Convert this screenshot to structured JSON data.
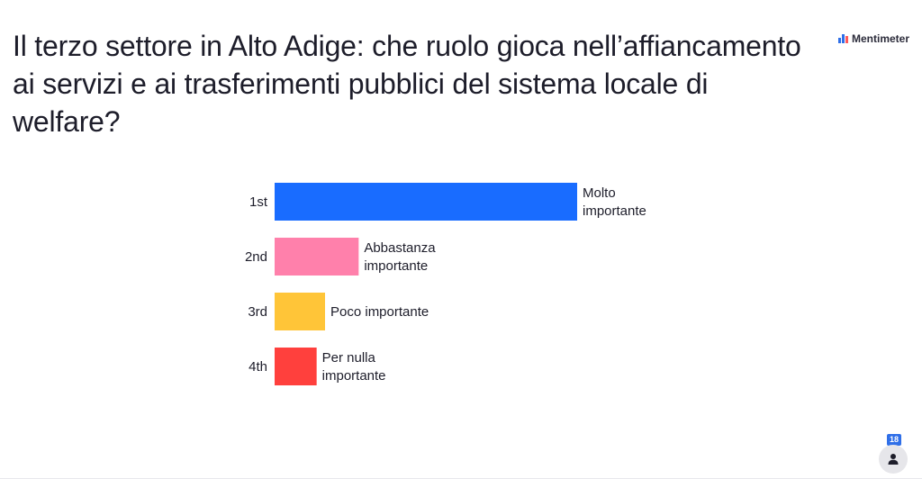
{
  "slide": {
    "title": "Il terzo settore in Alto Adige: che ruolo gioca nell’affiancamento ai servizi e ai trasferimenti pubblici del sistema locale di welfare?",
    "brand": "Mentimeter",
    "participant_count": "18",
    "icons": {
      "brand_logo": "mentimeter-logo-icon",
      "participants": "person-icon"
    }
  },
  "chart_data": {
    "type": "bar",
    "orientation": "horizontal",
    "categories": [
      "1st",
      "2nd",
      "3rd",
      "4th"
    ],
    "series": [
      {
        "values": [
          18,
          5,
          3,
          2.5
        ],
        "labels": [
          [
            "Molto",
            "importante"
          ],
          [
            "Abbastanza",
            "importante"
          ],
          [
            "Poco importante"
          ],
          [
            "Per nulla",
            "importante"
          ]
        ],
        "colors": [
          "#196cff",
          "#ff80ab",
          "#ffc538",
          "#ff403d"
        ]
      }
    ],
    "xlim": [
      0,
      18
    ],
    "grid": false,
    "legend": "none",
    "title": "",
    "xlabel": "",
    "ylabel": ""
  }
}
